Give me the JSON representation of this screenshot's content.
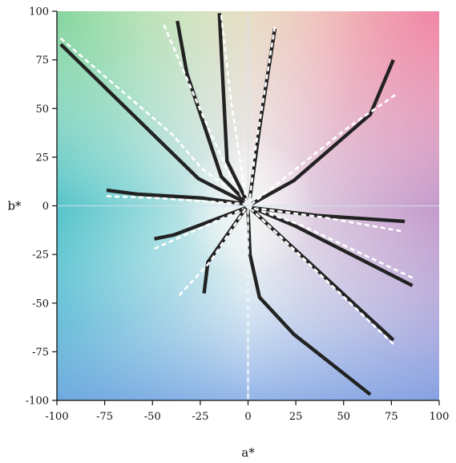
{
  "chart_data": {
    "type": "line",
    "title": "",
    "xlabel": "a*",
    "ylabel": "b*",
    "xlim": [
      -100,
      100
    ],
    "ylim": [
      -100,
      100
    ],
    "xticks": [
      -100,
      -75,
      -50,
      -25,
      0,
      25,
      50,
      75,
      100
    ],
    "yticks": [
      100,
      75,
      50,
      25,
      0,
      -25,
      -50,
      -75,
      -100
    ],
    "grid": false,
    "background": "CIELAB a*b* color plane",
    "series": [
      {
        "style": "solid",
        "color": "#222222",
        "points": [
          [
            -98,
            83
          ],
          [
            -26,
            14
          ],
          [
            -2,
            2
          ]
        ]
      },
      {
        "style": "dashed",
        "color": "#ffffff",
        "points": [
          [
            -98,
            86
          ],
          [
            -40,
            37
          ],
          [
            -24,
            19
          ],
          [
            -2,
            3
          ]
        ]
      },
      {
        "style": "solid",
        "color": "#222222",
        "points": [
          [
            -37,
            95
          ],
          [
            -32,
            68
          ],
          [
            -14,
            15
          ],
          [
            -2,
            3
          ]
        ]
      },
      {
        "style": "dashed",
        "color": "#ffffff",
        "points": [
          [
            -44,
            93
          ],
          [
            -24,
            47
          ],
          [
            -10,
            17
          ],
          [
            -2,
            3
          ]
        ]
      },
      {
        "style": "solid",
        "color": "#222222",
        "points": [
          [
            -15,
            99
          ],
          [
            -11,
            23
          ],
          [
            -1,
            3
          ]
        ]
      },
      {
        "style": "dashed",
        "color": "#ffffff",
        "points": [
          [
            -14,
            98
          ],
          [
            -9,
            55
          ],
          [
            -1,
            3
          ]
        ]
      },
      {
        "style": "solid",
        "color": "#222222",
        "points": [
          [
            14,
            91
          ],
          [
            6,
            40
          ],
          [
            1,
            4
          ]
        ]
      },
      {
        "style": "dashed",
        "color": "#ffffff",
        "points": [
          [
            14,
            92
          ],
          [
            4,
            30
          ],
          [
            1,
            4
          ]
        ]
      },
      {
        "style": "solid",
        "color": "#222222",
        "points": [
          [
            76,
            75
          ],
          [
            64,
            47
          ],
          [
            24,
            13
          ],
          [
            2,
            1
          ]
        ]
      },
      {
        "style": "dashed",
        "color": "#ffffff",
        "points": [
          [
            77,
            57
          ],
          [
            52,
            40
          ],
          [
            2,
            1
          ]
        ]
      },
      {
        "style": "solid",
        "color": "#222222",
        "points": [
          [
            -74,
            8
          ],
          [
            -58,
            6
          ],
          [
            -24,
            4
          ],
          [
            -2,
            1
          ]
        ]
      },
      {
        "style": "dashed",
        "color": "#ffffff",
        "points": [
          [
            -74,
            5
          ],
          [
            -48,
            4
          ],
          [
            -2,
            1
          ]
        ]
      },
      {
        "style": "solid",
        "color": "#222222",
        "points": [
          [
            82,
            -8
          ],
          [
            36,
            -5
          ],
          [
            2,
            -1
          ]
        ]
      },
      {
        "style": "dashed",
        "color": "#ffffff",
        "points": [
          [
            80,
            -13
          ],
          [
            40,
            -6
          ],
          [
            2,
            -1
          ]
        ]
      },
      {
        "style": "solid",
        "color": "#222222",
        "points": [
          [
            86,
            -41
          ],
          [
            24,
            -10
          ],
          [
            2,
            -1
          ]
        ]
      },
      {
        "style": "dashed",
        "color": "#ffffff",
        "points": [
          [
            86,
            -37
          ],
          [
            28,
            -10
          ],
          [
            2,
            -1
          ]
        ]
      },
      {
        "style": "solid",
        "color": "#222222",
        "points": [
          [
            76,
            -69
          ],
          [
            2,
            -2
          ]
        ]
      },
      {
        "style": "dashed",
        "color": "#ffffff",
        "points": [
          [
            76,
            -71
          ],
          [
            2,
            -2
          ]
        ]
      },
      {
        "style": "solid",
        "color": "#222222",
        "points": [
          [
            64,
            -97
          ],
          [
            24,
            -66
          ],
          [
            6,
            -47
          ],
          [
            1,
            -25
          ],
          [
            0,
            -2
          ]
        ]
      },
      {
        "style": "dashed",
        "color": "#ffffff",
        "points": [
          [
            0,
            -99
          ],
          [
            0,
            -2
          ]
        ]
      },
      {
        "style": "solid",
        "color": "#222222",
        "points": [
          [
            -49,
            -17
          ],
          [
            -39,
            -15
          ],
          [
            -1,
            -1
          ]
        ]
      },
      {
        "style": "dashed",
        "color": "#ffffff",
        "points": [
          [
            -49,
            -22
          ],
          [
            -1,
            -1
          ]
        ]
      },
      {
        "style": "solid",
        "color": "#222222",
        "points": [
          [
            -23,
            -45
          ],
          [
            -21,
            -29
          ],
          [
            -1,
            -1
          ]
        ]
      },
      {
        "style": "dashed",
        "color": "#ffffff",
        "points": [
          [
            -36,
            -46
          ],
          [
            -20,
            -29
          ],
          [
            -1,
            -1
          ]
        ]
      }
    ]
  }
}
